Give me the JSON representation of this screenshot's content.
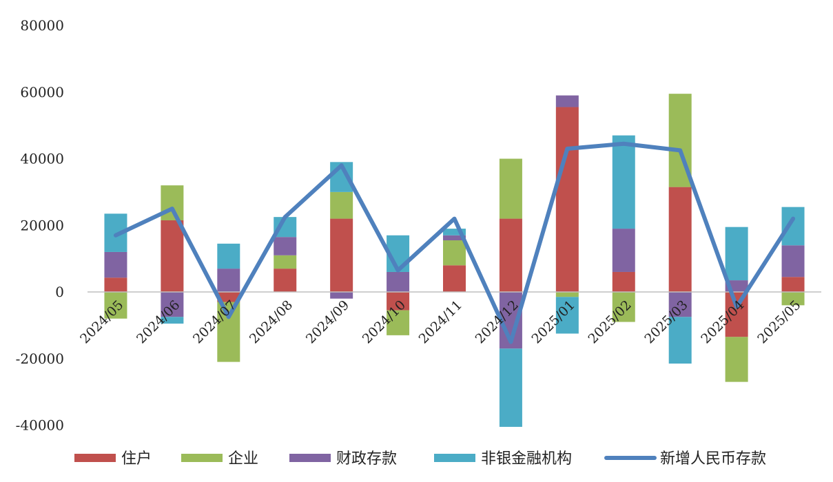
{
  "chart_data": {
    "type": "bar",
    "stacked": true,
    "categories": [
      "2024/05",
      "2024/06",
      "2024/07",
      "2024/08",
      "2024/09",
      "2024/10",
      "2024/11",
      "2024/12",
      "2025/01",
      "2025/02",
      "2025/03",
      "2025/04",
      "2025/05"
    ],
    "yticks": [
      {
        "value": 80000,
        "label": "80000"
      },
      {
        "value": 60000,
        "label": "60000"
      },
      {
        "value": 40000,
        "label": "40000"
      },
      {
        "value": 20000,
        "label": "20000"
      },
      {
        "value": 0,
        "label": "0"
      },
      {
        "value": -20000,
        "label": "-20000"
      },
      {
        "value": -40000,
        "label": "-40000"
      }
    ],
    "ylim": [
      -45000,
      80000
    ],
    "legend_position": "bottom",
    "series": [
      {
        "name": "住户",
        "kind": "bar",
        "color": "#c0504d",
        "values": [
          4300,
          21500,
          -3000,
          7000,
          22000,
          -5500,
          8000,
          22000,
          55500,
          6000,
          31500,
          -13500,
          4500
        ]
      },
      {
        "name": "企业",
        "kind": "bar",
        "color": "#9bbb59",
        "values": [
          -8000,
          10500,
          -18000,
          4000,
          8000,
          -7500,
          7500,
          18000,
          -1500,
          -9000,
          28000,
          -13500,
          -4000
        ]
      },
      {
        "name": "财政存款",
        "kind": "bar",
        "color": "#8064a2",
        "values": [
          7700,
          -7500,
          7000,
          5500,
          -2000,
          6000,
          1500,
          -17000,
          3500,
          13000,
          -7500,
          3500,
          9500
        ]
      },
      {
        "name": "非银金融机构",
        "kind": "bar",
        "color": "#4bacc6",
        "values": [
          11500,
          -2000,
          7500,
          6000,
          9000,
          11000,
          2000,
          -23500,
          -11000,
          28000,
          -14000,
          16000,
          11500
        ]
      },
      {
        "name": "新增人民币存款",
        "kind": "line",
        "color": "#4f81bd",
        "values": [
          17000,
          25000,
          -7500,
          22500,
          38000,
          6500,
          22000,
          -15000,
          43000,
          44500,
          42500,
          -4500,
          22000
        ]
      }
    ]
  }
}
